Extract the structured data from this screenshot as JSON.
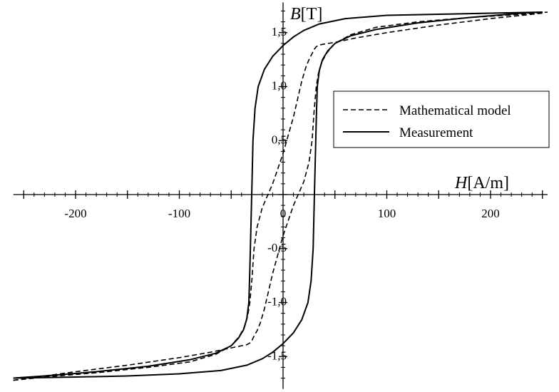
{
  "chart_data": {
    "type": "line",
    "title": "",
    "xlabel_var": "H",
    "xlabel_unit": "[A/m]",
    "ylabel_var": "B",
    "ylabel_unit": "[T]",
    "xlim": [
      -260,
      255
    ],
    "ylim": [
      -1.8,
      1.78
    ],
    "x_ticks": [
      -200,
      -100,
      0,
      100,
      200
    ],
    "x_tick_labels": [
      "-200",
      "-100",
      "0",
      "100",
      "200"
    ],
    "y_ticks": [
      -1.5,
      -1.0,
      -0.5,
      0.5,
      1.0,
      1.5
    ],
    "y_tick_labels": [
      "-1,5",
      "-1,0",
      "-0,5",
      "0,5",
      "1,0",
      "1,5"
    ],
    "grid": false,
    "legend_position": "right",
    "series": [
      {
        "name": "Mathematical model",
        "style": "dashed",
        "branches": [
          {
            "x": [
              250,
              200,
              150,
              100,
              70,
              50,
              40,
              35,
              32,
              30,
              28,
              25,
              22,
              18,
              10,
              0,
              -10,
              -20,
              -25,
              -28,
              -30,
              -32,
              -34,
              -37,
              -42,
              -50,
              -65,
              -90,
              -130,
              -180,
              -230,
              -260
            ],
            "y": [
              1.68,
              1.63,
              1.57,
              1.5,
              1.45,
              1.41,
              1.395,
              1.385,
              1.37,
              1.345,
              1.305,
              1.25,
              1.18,
              1.05,
              0.72,
              0.38,
              0.1,
              -0.12,
              -0.3,
              -0.5,
              -0.78,
              -1.0,
              -1.12,
              -1.22,
              -1.31,
              -1.4,
              -1.48,
              -1.55,
              -1.6,
              -1.65,
              -1.69,
              -1.72
            ]
          },
          {
            "x": [
              -260,
              -200,
              -150,
              -100,
              -70,
              -50,
              -40,
              -35,
              -32,
              -30,
              -28,
              -25,
              -22,
              -18,
              -10,
              0,
              10,
              20,
              25,
              28,
              30,
              32,
              34,
              37,
              42,
              50,
              65,
              90,
              130,
              180,
              230,
              255
            ],
            "y": [
              -1.72,
              -1.64,
              -1.58,
              -1.51,
              -1.46,
              -1.42,
              -1.4,
              -1.39,
              -1.375,
              -1.35,
              -1.31,
              -1.26,
              -1.19,
              -1.06,
              -0.73,
              -0.38,
              -0.1,
              0.12,
              0.3,
              0.5,
              0.78,
              1.0,
              1.12,
              1.22,
              1.31,
              1.4,
              1.48,
              1.55,
              1.6,
              1.64,
              1.67,
              1.69
            ]
          }
        ]
      },
      {
        "name": "Measurement",
        "style": "solid",
        "branches": [
          {
            "x": [
              250,
              200,
              150,
              100,
              60,
              35,
              20,
              10,
              0,
              -10,
              -18,
              -24,
              -27,
              -29,
              -30,
              -31,
              -32,
              -33,
              -35,
              -38,
              -43,
              -50,
              -65,
              -90,
              -130,
              -180,
              -230,
              -260
            ],
            "y": [
              1.69,
              1.68,
              1.67,
              1.66,
              1.63,
              1.58,
              1.52,
              1.46,
              1.38,
              1.28,
              1.16,
              1.0,
              0.8,
              0.5,
              0.1,
              -0.3,
              -0.7,
              -1.0,
              -1.15,
              -1.25,
              -1.33,
              -1.4,
              -1.47,
              -1.53,
              -1.59,
              -1.64,
              -1.68,
              -1.7
            ]
          },
          {
            "x": [
              -260,
              -200,
              -150,
              -100,
              -60,
              -35,
              -20,
              -10,
              0,
              10,
              18,
              24,
              27,
              29,
              30,
              31,
              32,
              33,
              35,
              38,
              43,
              50,
              65,
              90,
              130,
              180,
              230,
              250
            ],
            "y": [
              -1.7,
              -1.69,
              -1.68,
              -1.66,
              -1.63,
              -1.58,
              -1.52,
              -1.46,
              -1.38,
              -1.28,
              -1.16,
              -1.0,
              -0.8,
              -0.5,
              -0.1,
              0.3,
              0.7,
              1.0,
              1.15,
              1.25,
              1.33,
              1.4,
              1.47,
              1.53,
              1.59,
              1.64,
              1.68,
              1.69
            ]
          }
        ]
      }
    ]
  }
}
